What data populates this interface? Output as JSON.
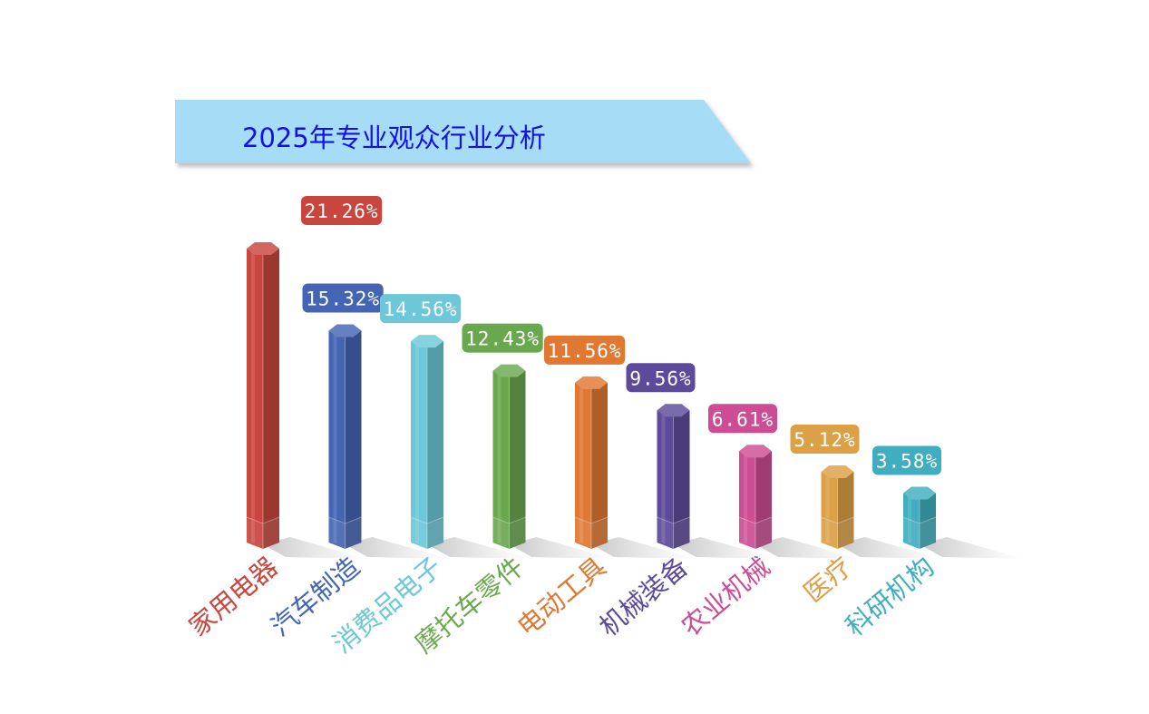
{
  "chart_data": {
    "type": "bar",
    "title": "2025年专业观众行业分析",
    "xlabel": "",
    "ylabel": "",
    "ylim": [
      0,
      21.26
    ],
    "grid": false,
    "legend": "none",
    "categories": [
      "家用电器",
      "汽车制造",
      "消费品电子",
      "摩托车零件",
      "电动工具",
      "机械装备",
      "农业机械",
      "医疗",
      "科研机构"
    ],
    "values": [
      21.26,
      15.32,
      14.56,
      12.43,
      11.56,
      9.56,
      6.61,
      5.12,
      3.58
    ],
    "labels": [
      "21.26%",
      "15.32%",
      "14.56%",
      "12.43%",
      "11.56%",
      "9.56%",
      "6.61%",
      "5.12%",
      "3.58%"
    ],
    "colors": [
      "#c8463e",
      "#4465b4",
      "#6cc8d8",
      "#6aa84f",
      "#e07832",
      "#5d4a9a",
      "#cc4d94",
      "#dca046",
      "#40aebe"
    ],
    "title_banner_color": "#a6dcf5"
  }
}
